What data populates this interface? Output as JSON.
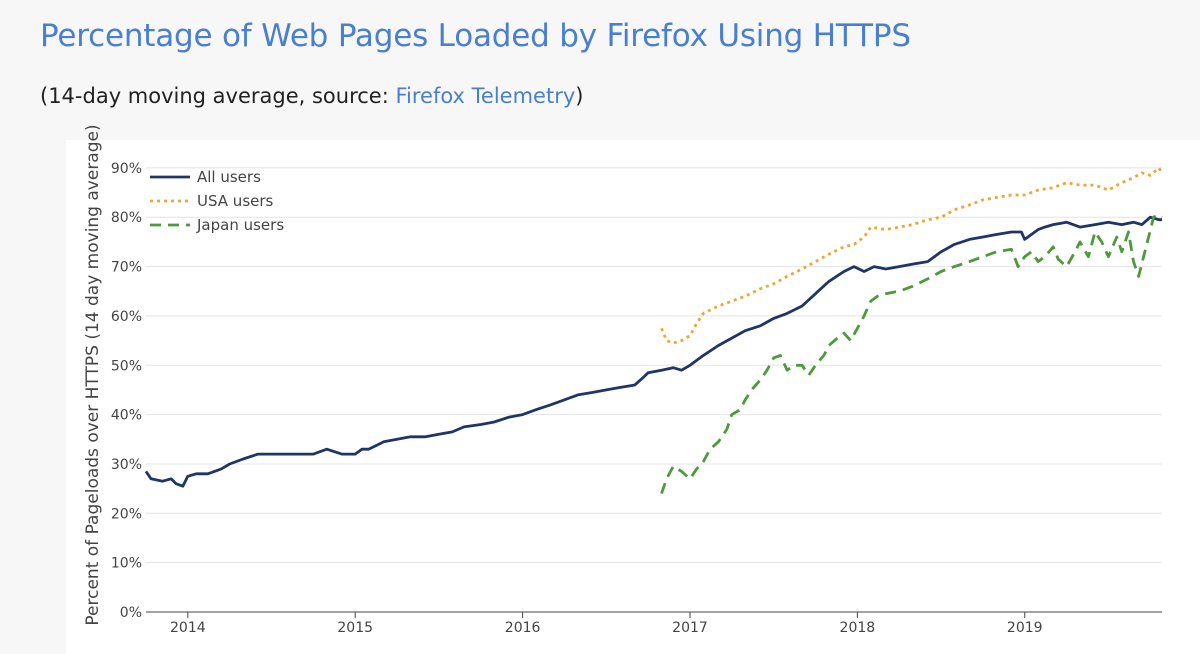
{
  "header": {
    "title": "Percentage of Web Pages Loaded by Firefox Using HTTPS",
    "subtitle_prefix": "(14-day moving average, source: ",
    "source_link": "Firefox Telemetry",
    "subtitle_suffix": ")"
  },
  "chart_data": {
    "type": "line",
    "title": "Percentage of Web Pages Loaded by Firefox Using HTTPS",
    "xlabel": "",
    "ylabel": "Percent of Pageloads over HTTPS (14 day moving average)",
    "xlim": [
      2013.75,
      2019.82
    ],
    "ylim": [
      0,
      0.92
    ],
    "y_ticks": [
      0,
      0.1,
      0.2,
      0.3,
      0.4,
      0.5,
      0.6,
      0.7,
      0.8,
      0.9
    ],
    "y_tick_labels": [
      "0%",
      "10%",
      "20%",
      "30%",
      "40%",
      "50%",
      "60%",
      "70%",
      "80%",
      "90%"
    ],
    "x_ticks": [
      2014,
      2015,
      2016,
      2017,
      2018,
      2019
    ],
    "x_tick_labels": [
      "2014",
      "2015",
      "2016",
      "2017",
      "2018",
      "2019"
    ],
    "grid": "horizontal",
    "legend_position": "top-left",
    "series": [
      {
        "name": "All users",
        "color": "#1f3566",
        "dash": "solid",
        "x": [
          2013.75,
          2013.78,
          2013.85,
          2013.9,
          2013.93,
          2013.97,
          2014.0,
          2014.05,
          2014.12,
          2014.2,
          2014.25,
          2014.33,
          2014.42,
          2014.5,
          2014.58,
          2014.67,
          2014.75,
          2014.83,
          2014.92,
          2015.0,
          2015.04,
          2015.08,
          2015.17,
          2015.25,
          2015.33,
          2015.42,
          2015.5,
          2015.58,
          2015.65,
          2015.75,
          2015.83,
          2015.92,
          2016.0,
          2016.08,
          2016.17,
          2016.25,
          2016.33,
          2016.42,
          2016.5,
          2016.58,
          2016.67,
          2016.72,
          2016.75,
          2016.83,
          2016.9,
          2016.95,
          2017.0,
          2017.08,
          2017.17,
          2017.25,
          2017.33,
          2017.42,
          2017.5,
          2017.58,
          2017.67,
          2017.75,
          2017.83,
          2017.92,
          2017.98,
          2018.04,
          2018.1,
          2018.17,
          2018.25,
          2018.33,
          2018.42,
          2018.5,
          2018.58,
          2018.67,
          2018.75,
          2018.83,
          2018.92,
          2018.98,
          2019.0,
          2019.04,
          2019.08,
          2019.12,
          2019.17,
          2019.25,
          2019.33,
          2019.42,
          2019.5,
          2019.58,
          2019.65,
          2019.7,
          2019.75,
          2019.8,
          2019.82
        ],
        "y": [
          0.285,
          0.27,
          0.265,
          0.27,
          0.26,
          0.255,
          0.275,
          0.28,
          0.28,
          0.29,
          0.3,
          0.31,
          0.32,
          0.32,
          0.32,
          0.32,
          0.32,
          0.33,
          0.32,
          0.32,
          0.33,
          0.33,
          0.345,
          0.35,
          0.355,
          0.355,
          0.36,
          0.365,
          0.375,
          0.38,
          0.385,
          0.395,
          0.4,
          0.41,
          0.42,
          0.43,
          0.44,
          0.445,
          0.45,
          0.455,
          0.46,
          0.475,
          0.485,
          0.49,
          0.495,
          0.49,
          0.5,
          0.52,
          0.54,
          0.555,
          0.57,
          0.58,
          0.595,
          0.605,
          0.62,
          0.645,
          0.67,
          0.69,
          0.7,
          0.69,
          0.7,
          0.695,
          0.7,
          0.705,
          0.71,
          0.73,
          0.745,
          0.755,
          0.76,
          0.765,
          0.77,
          0.77,
          0.755,
          0.765,
          0.775,
          0.78,
          0.785,
          0.79,
          0.78,
          0.785,
          0.79,
          0.785,
          0.79,
          0.785,
          0.8,
          0.795,
          0.795
        ]
      },
      {
        "name": "USA users",
        "color": "#f0a536",
        "dash": "dotted",
        "x": [
          2016.83,
          2016.86,
          2016.9,
          2016.95,
          2017.0,
          2017.04,
          2017.08,
          2017.17,
          2017.25,
          2017.33,
          2017.42,
          2017.5,
          2017.58,
          2017.67,
          2017.75,
          2017.83,
          2017.92,
          2017.98,
          2018.04,
          2018.08,
          2018.17,
          2018.25,
          2018.33,
          2018.42,
          2018.5,
          2018.58,
          2018.67,
          2018.75,
          2018.83,
          2018.92,
          2019.0,
          2019.08,
          2019.17,
          2019.25,
          2019.33,
          2019.42,
          2019.5,
          2019.58,
          2019.65,
          2019.7,
          2019.75,
          2019.8,
          2019.82
        ],
        "y": [
          0.575,
          0.55,
          0.545,
          0.55,
          0.56,
          0.585,
          0.605,
          0.62,
          0.63,
          0.64,
          0.655,
          0.665,
          0.68,
          0.695,
          0.71,
          0.725,
          0.74,
          0.745,
          0.76,
          0.78,
          0.775,
          0.78,
          0.785,
          0.795,
          0.8,
          0.815,
          0.825,
          0.835,
          0.84,
          0.845,
          0.845,
          0.855,
          0.86,
          0.87,
          0.865,
          0.865,
          0.855,
          0.87,
          0.88,
          0.89,
          0.885,
          0.9,
          0.89
        ]
      },
      {
        "name": "Japan users",
        "color": "#4c9a3a",
        "dash": "dashed",
        "x": [
          2016.83,
          2016.86,
          2016.9,
          2016.95,
          2017.0,
          2017.04,
          2017.08,
          2017.12,
          2017.17,
          2017.22,
          2017.25,
          2017.3,
          2017.33,
          2017.38,
          2017.42,
          2017.46,
          2017.5,
          2017.54,
          2017.58,
          2017.62,
          2017.67,
          2017.71,
          2017.75,
          2017.8,
          2017.83,
          2017.88,
          2017.92,
          2017.96,
          2018.0,
          2018.04,
          2018.08,
          2018.12,
          2018.17,
          2018.25,
          2018.33,
          2018.42,
          2018.5,
          2018.58,
          2018.67,
          2018.75,
          2018.83,
          2018.92,
          2018.96,
          2019.0,
          2019.04,
          2019.08,
          2019.12,
          2019.17,
          2019.2,
          2019.25,
          2019.3,
          2019.33,
          2019.38,
          2019.42,
          2019.46,
          2019.5,
          2019.55,
          2019.58,
          2019.62,
          2019.65,
          2019.68,
          2019.71,
          2019.74,
          2019.77,
          2019.8,
          2019.82
        ],
        "y": [
          0.24,
          0.27,
          0.295,
          0.285,
          0.27,
          0.29,
          0.305,
          0.33,
          0.345,
          0.37,
          0.4,
          0.41,
          0.43,
          0.455,
          0.47,
          0.49,
          0.515,
          0.52,
          0.49,
          0.5,
          0.5,
          0.48,
          0.5,
          0.52,
          0.54,
          0.555,
          0.565,
          0.55,
          0.575,
          0.6,
          0.63,
          0.64,
          0.645,
          0.65,
          0.66,
          0.675,
          0.69,
          0.7,
          0.71,
          0.72,
          0.73,
          0.735,
          0.7,
          0.72,
          0.73,
          0.71,
          0.72,
          0.74,
          0.715,
          0.7,
          0.73,
          0.75,
          0.72,
          0.77,
          0.75,
          0.72,
          0.76,
          0.73,
          0.77,
          0.71,
          0.68,
          0.72,
          0.76,
          0.8,
          0.805,
          0.8
        ]
      }
    ]
  }
}
